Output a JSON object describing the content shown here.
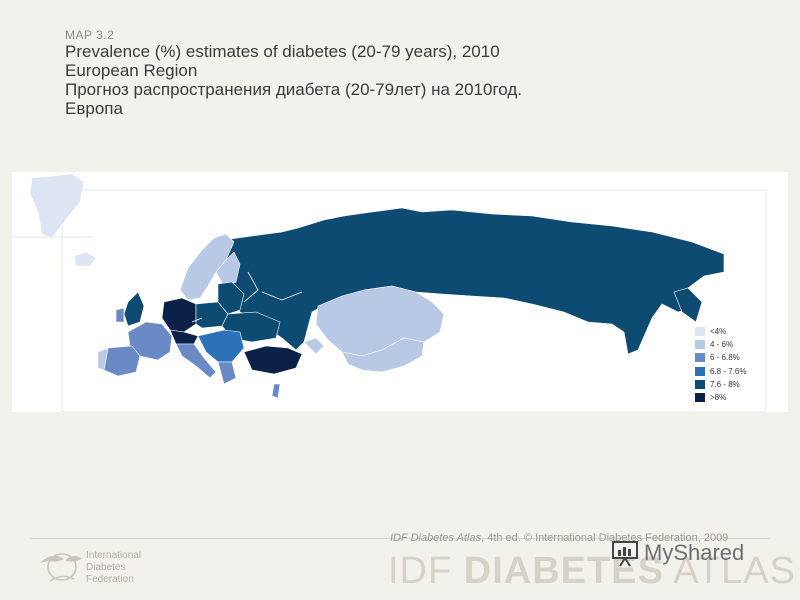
{
  "map_label": "MAP 3.2",
  "title_lines": [
    "Prevalence (%) estimates of diabetes (20-79 years), 2010",
    "European Region",
    "Прогноз распространения диабета (20-79лет) на 2010год.",
    "Европа"
  ],
  "map": {
    "region": "European Region",
    "colors": {
      "no_data": "#ffffff",
      "lt4": "#dde4f2",
      "c4_6": "#b8c9e6",
      "c6_68": "#6a8ac6",
      "c68_76": "#2c72b8",
      "c76_8": "#0d4b72",
      "gt8": "#0b2148"
    },
    "legend": [
      {
        "label": "<4%",
        "color": "#dde4f2"
      },
      {
        "label": "4 - 6%",
        "color": "#b8c9e6"
      },
      {
        "label": "6 - 6.8%",
        "color": "#6a8ac6"
      },
      {
        "label": "6.8 - 7.6%",
        "color": "#2c72b8"
      },
      {
        "label": "7.6 - 8%",
        "color": "#0d4b72"
      },
      {
        "label": ">8%",
        "color": "#0b2148"
      }
    ]
  },
  "footer": {
    "credit_source": "IDF Diabetes Atlas",
    "credit_rest": ", 4th ed.  © International Diabetes Federation, 2009",
    "brand_prefix": "IDF ",
    "brand_bold": "DIABETES",
    "brand_suffix": " ATLAS",
    "org_lines": [
      "International",
      "Diabetes",
      "Federation"
    ],
    "watermark": "MyShared"
  }
}
